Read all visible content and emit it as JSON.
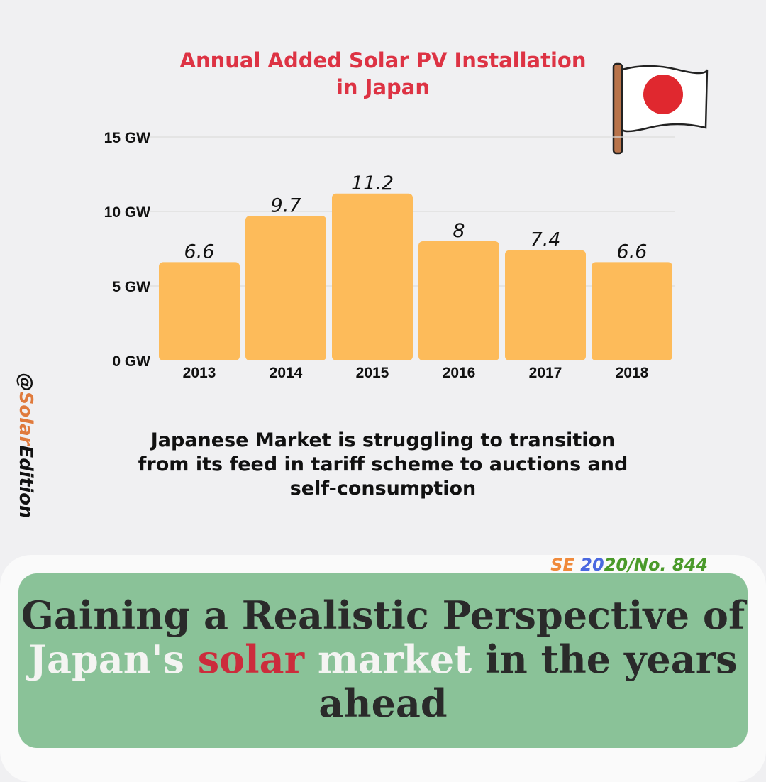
{
  "title": {
    "line1": "Annual Added Solar PV Installation",
    "line2": "in Japan"
  },
  "colors": {
    "bar": "#fdbb5a",
    "title": "#dd3344",
    "headline_box": "#8ac298",
    "flag_red": "#e0282f"
  },
  "chart_data": {
    "type": "bar",
    "categories": [
      "2013",
      "2014",
      "2015",
      "2016",
      "2017",
      "2018"
    ],
    "values": [
      6.6,
      9.7,
      11.2,
      8,
      7.4,
      6.6
    ],
    "value_labels": [
      "6.6",
      "9.7",
      "11.2",
      "8",
      "7.4",
      "6.6"
    ],
    "ylim": [
      0,
      15
    ],
    "yticks": [
      {
        "value": 0,
        "label": "0 GW"
      },
      {
        "value": 5,
        "label": "5 GW"
      },
      {
        "value": 10,
        "label": "10 GW"
      },
      {
        "value": 15,
        "label": "15 GW"
      }
    ],
    "grid": true
  },
  "note": {
    "line1": "Japanese Market is struggling to transition",
    "line2": "from its feed in tariff scheme to auctions and",
    "line3": "self-consumption"
  },
  "handle": {
    "at": "@",
    "accent": "Solar",
    "rest": "Edition"
  },
  "issue": {
    "part1": "SE",
    "part2": "20",
    "part3": "20/No. 844"
  },
  "headline": {
    "line1": "Gaining a Realistic Perspective of",
    "word_japans": "Japan's",
    "word_solar": "solar",
    "word_market": "market",
    "rest2": "in the years",
    "line3": "ahead"
  }
}
